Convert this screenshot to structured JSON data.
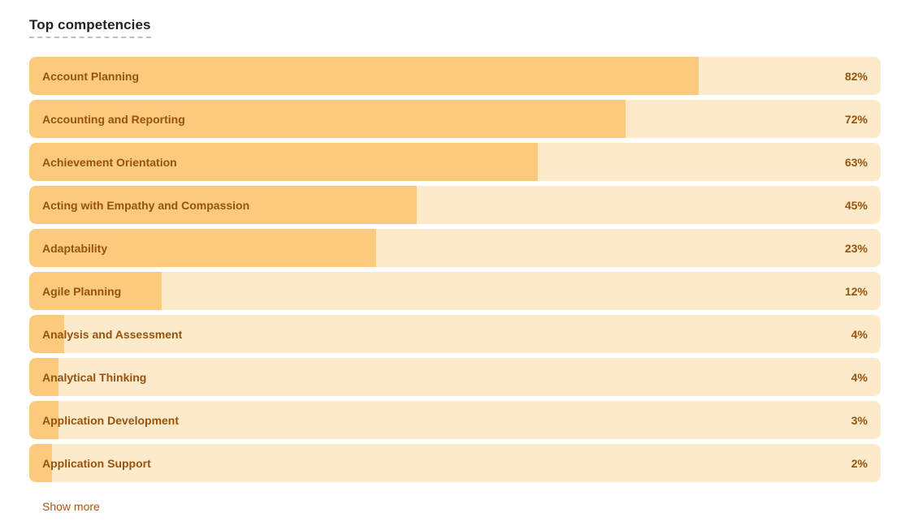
{
  "page": {
    "title": "Top competencies",
    "show_more_label": "Show more"
  },
  "colors": {
    "bar_fill": "#fbca7d",
    "bar_track": "#fdeaca",
    "bar_text": "#96530d",
    "title_text": "#1f2328",
    "show_more_text": "#a5570d"
  },
  "chart_data": {
    "type": "bar",
    "orientation": "horizontal",
    "title": "Top competencies",
    "xlabel": "",
    "ylabel": "",
    "xlim": [
      0,
      100
    ],
    "value_suffix": "%",
    "grid": false,
    "legend": false,
    "categories": [
      "Account Planning",
      "Accounting and Reporting",
      "Achievement Orientation",
      "Acting with Empathy and Compassion",
      "Adaptability",
      "Agile Planning",
      "Analysis and Assessment",
      "Analytical Thinking",
      "Application Development",
      "Application Support"
    ],
    "values": [
      82,
      72,
      63,
      45,
      23,
      12,
      4,
      4,
      3,
      2
    ],
    "rows": [
      {
        "label": "Account Planning",
        "value": 82,
        "display": "82%",
        "fill_pct": 78.6
      },
      {
        "label": "Accounting and Reporting",
        "value": 72,
        "display": "72%",
        "fill_pct": 70.0
      },
      {
        "label": "Achievement Orientation",
        "value": 63,
        "display": "63%",
        "fill_pct": 59.7
      },
      {
        "label": "Acting with Empathy and Compassion",
        "value": 45,
        "display": "45%",
        "fill_pct": 45.5
      },
      {
        "label": "Adaptability",
        "value": 23,
        "display": "23%",
        "fill_pct": 40.7
      },
      {
        "label": "Agile Planning",
        "value": 12,
        "display": "12%",
        "fill_pct": 15.6
      },
      {
        "label": "Analysis and Assessment",
        "value": 4,
        "display": "4%",
        "fill_pct": 4.1
      },
      {
        "label": "Analytical Thinking",
        "value": 4,
        "display": "4%",
        "fill_pct": 3.4
      },
      {
        "label": "Application Development",
        "value": 3,
        "display": "3%",
        "fill_pct": 3.4
      },
      {
        "label": "Application Support",
        "value": 2,
        "display": "2%",
        "fill_pct": 2.7
      }
    ]
  }
}
